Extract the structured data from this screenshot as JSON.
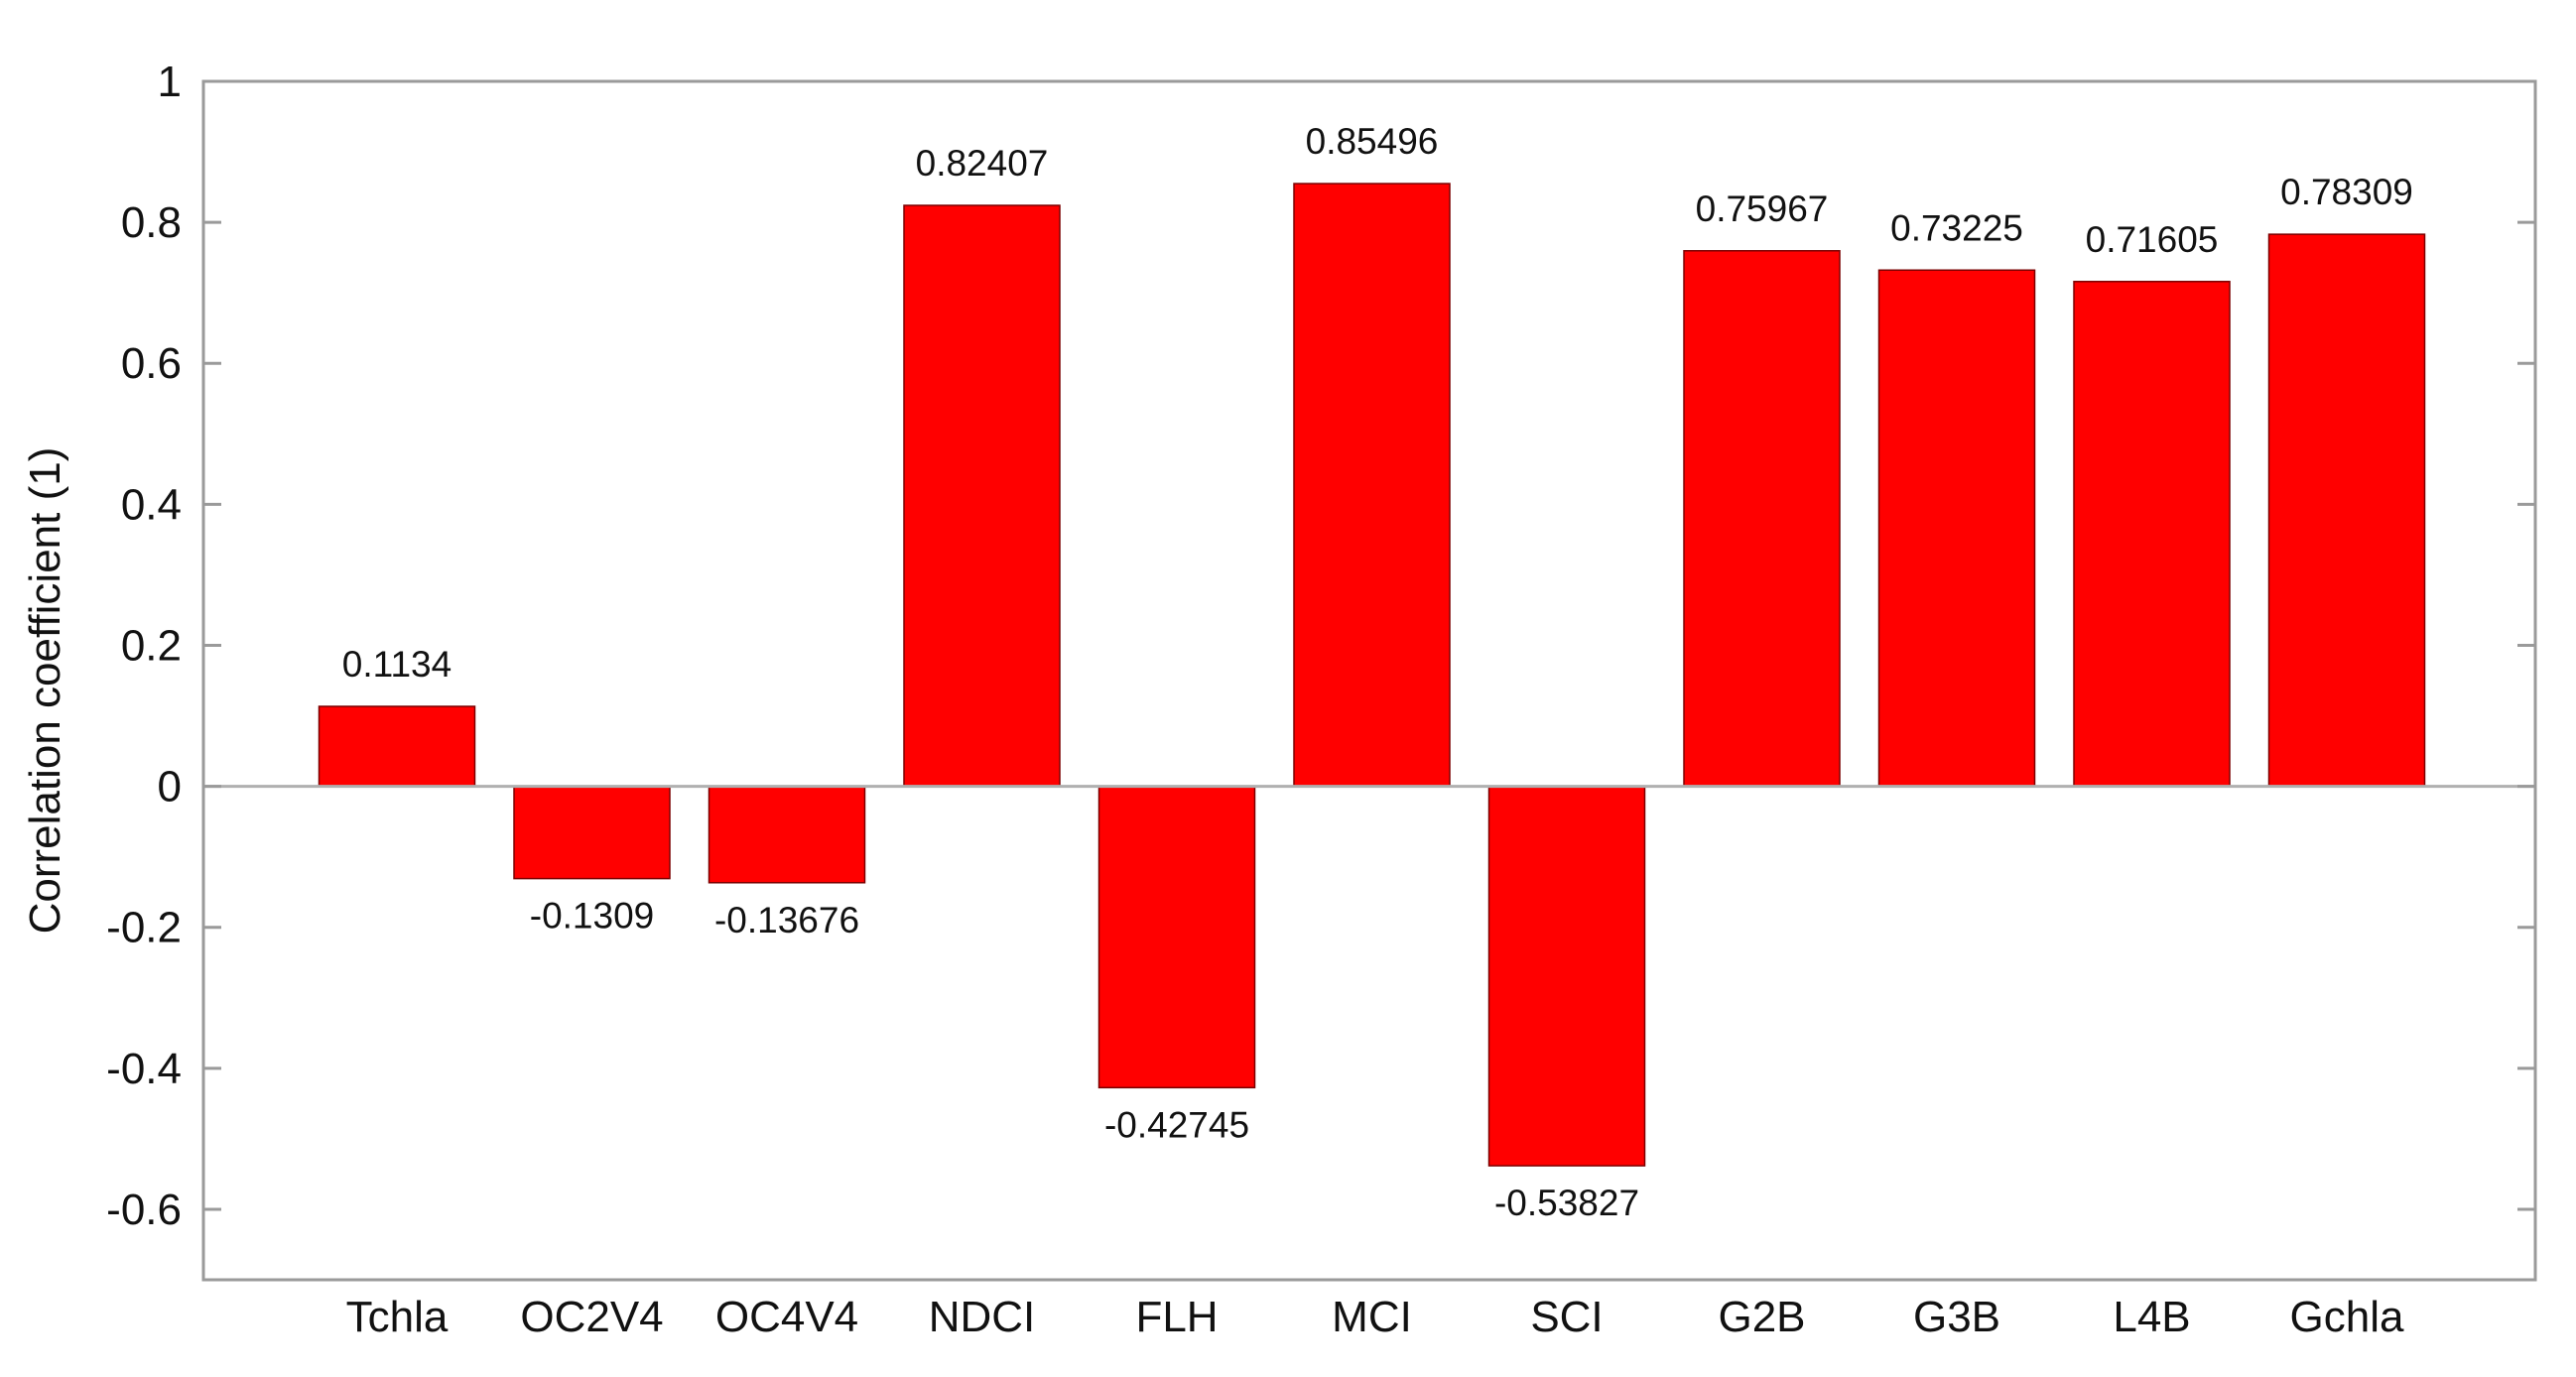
{
  "chart_data": {
    "type": "bar",
    "title": "",
    "xlabel": "",
    "ylabel": "Correlation coefficient (1)",
    "categories": [
      "Tchla",
      "OC2V4",
      "OC4V4",
      "NDCI",
      "FLH",
      "MCI",
      "SCI",
      "G2B",
      "G3B",
      "L4B",
      "Gchla"
    ],
    "values": [
      0.1134,
      -0.1309,
      -0.13676,
      0.82407,
      -0.42745,
      0.85496,
      -0.53827,
      0.75967,
      0.73225,
      0.71605,
      0.78309
    ],
    "value_labels": [
      "0.1134",
      "-0.1309",
      "-0.13676",
      "0.82407",
      "-0.42745",
      "0.85496",
      "-0.53827",
      "0.75967",
      "0.73225",
      "0.71605",
      "0.78309"
    ],
    "ylim": [
      -0.7,
      1
    ],
    "yticks": [
      -0.6,
      -0.4,
      -0.2,
      0,
      0.2,
      0.4,
      0.6,
      0.8,
      1
    ],
    "ytick_labels": [
      "-0.6",
      "-0.4",
      "-0.2",
      "0",
      "0.2",
      "0.4",
      "0.6",
      "0.8",
      "1"
    ],
    "bar_color": "#ff0000",
    "grid": false,
    "legend": "none"
  }
}
